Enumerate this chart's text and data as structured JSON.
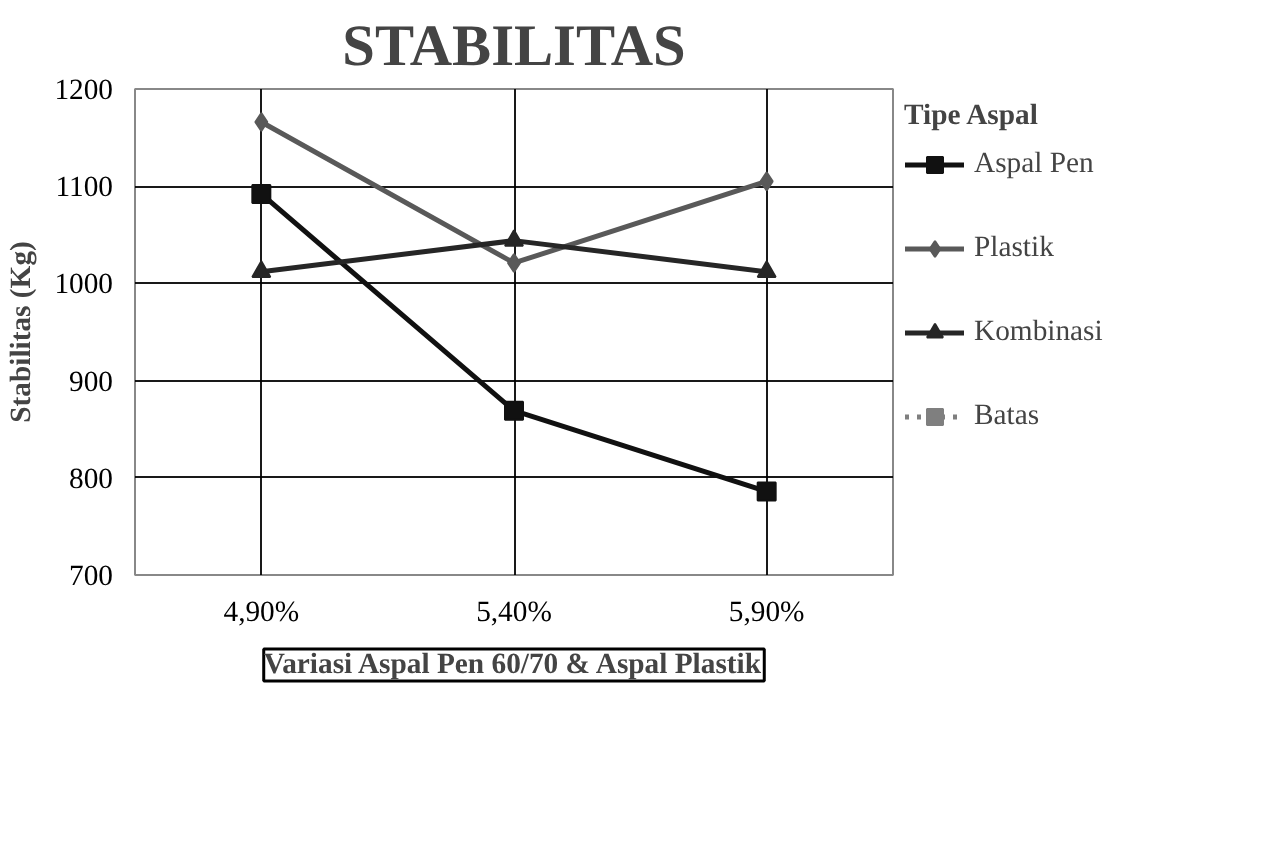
{
  "chart_data": {
    "type": "line",
    "title": "STABILITAS",
    "xlabel": "Variasi Aspal Pen 60/70 & Aspal Plastik",
    "ylabel": "Stabilitas (Kg)",
    "legend_title": "Tipe Aspal",
    "categories": [
      "4,90%",
      "5,40%",
      "5,90%"
    ],
    "ylim": [
      700,
      1200
    ],
    "yticks": [
      700,
      800,
      900,
      1000,
      1100,
      1200
    ],
    "grid": true,
    "legend": "right",
    "series": [
      {
        "name": "Aspal Pen",
        "color": "#111111",
        "marker": "square",
        "line_style": "solid",
        "values": [
          1092,
          869,
          786
        ]
      },
      {
        "name": "Plastik",
        "color": "#595959",
        "marker": "diamond",
        "line_style": "solid",
        "values": [
          1166,
          1021,
          1105
        ]
      },
      {
        "name": "Kombinasi",
        "color": "#262626",
        "marker": "triangle",
        "line_style": "solid",
        "values": [
          1012,
          1044,
          1012
        ]
      },
      {
        "name": "Batas",
        "color": "#7f7f7f",
        "marker": "square",
        "line_style": "dotted",
        "values": [
          null,
          null,
          null
        ]
      }
    ]
  }
}
